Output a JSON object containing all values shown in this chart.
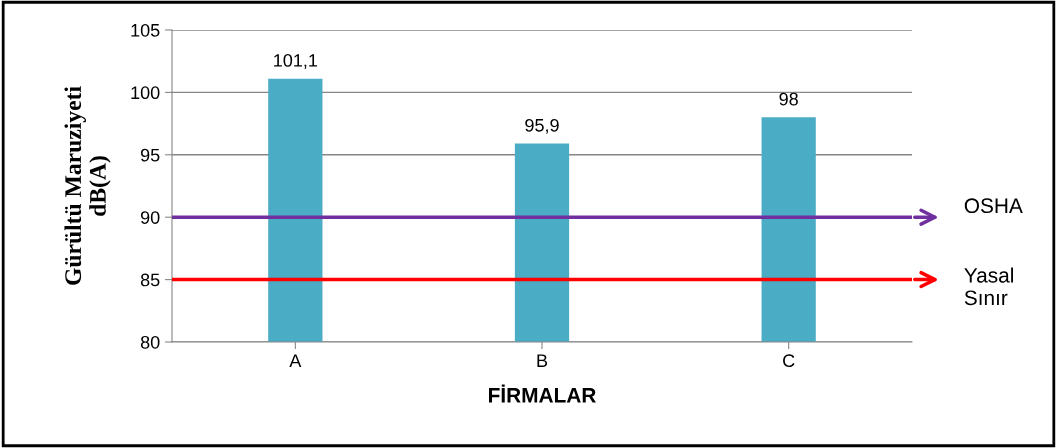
{
  "chart_data": {
    "type": "bar",
    "xlabel": "FİRMALAR",
    "ylabel": "Gürültü Maruziyeti\ndB(A)",
    "categories": [
      "A",
      "B",
      "C"
    ],
    "values": [
      101.1,
      95.9,
      98
    ],
    "value_labels": [
      "101,1",
      "95,9",
      "98"
    ],
    "color": "#4bacc6",
    "ylim": [
      80,
      105
    ],
    "yticks": [
      80,
      85,
      90,
      95,
      100,
      105
    ],
    "grid": "y",
    "ref_lines": [
      {
        "axis": "y",
        "value": 90,
        "label": "OSHA",
        "color": "#7030a0"
      },
      {
        "axis": "y",
        "value": 85,
        "label": "Yasal\nSınır",
        "color": "#ff0000"
      }
    ]
  }
}
